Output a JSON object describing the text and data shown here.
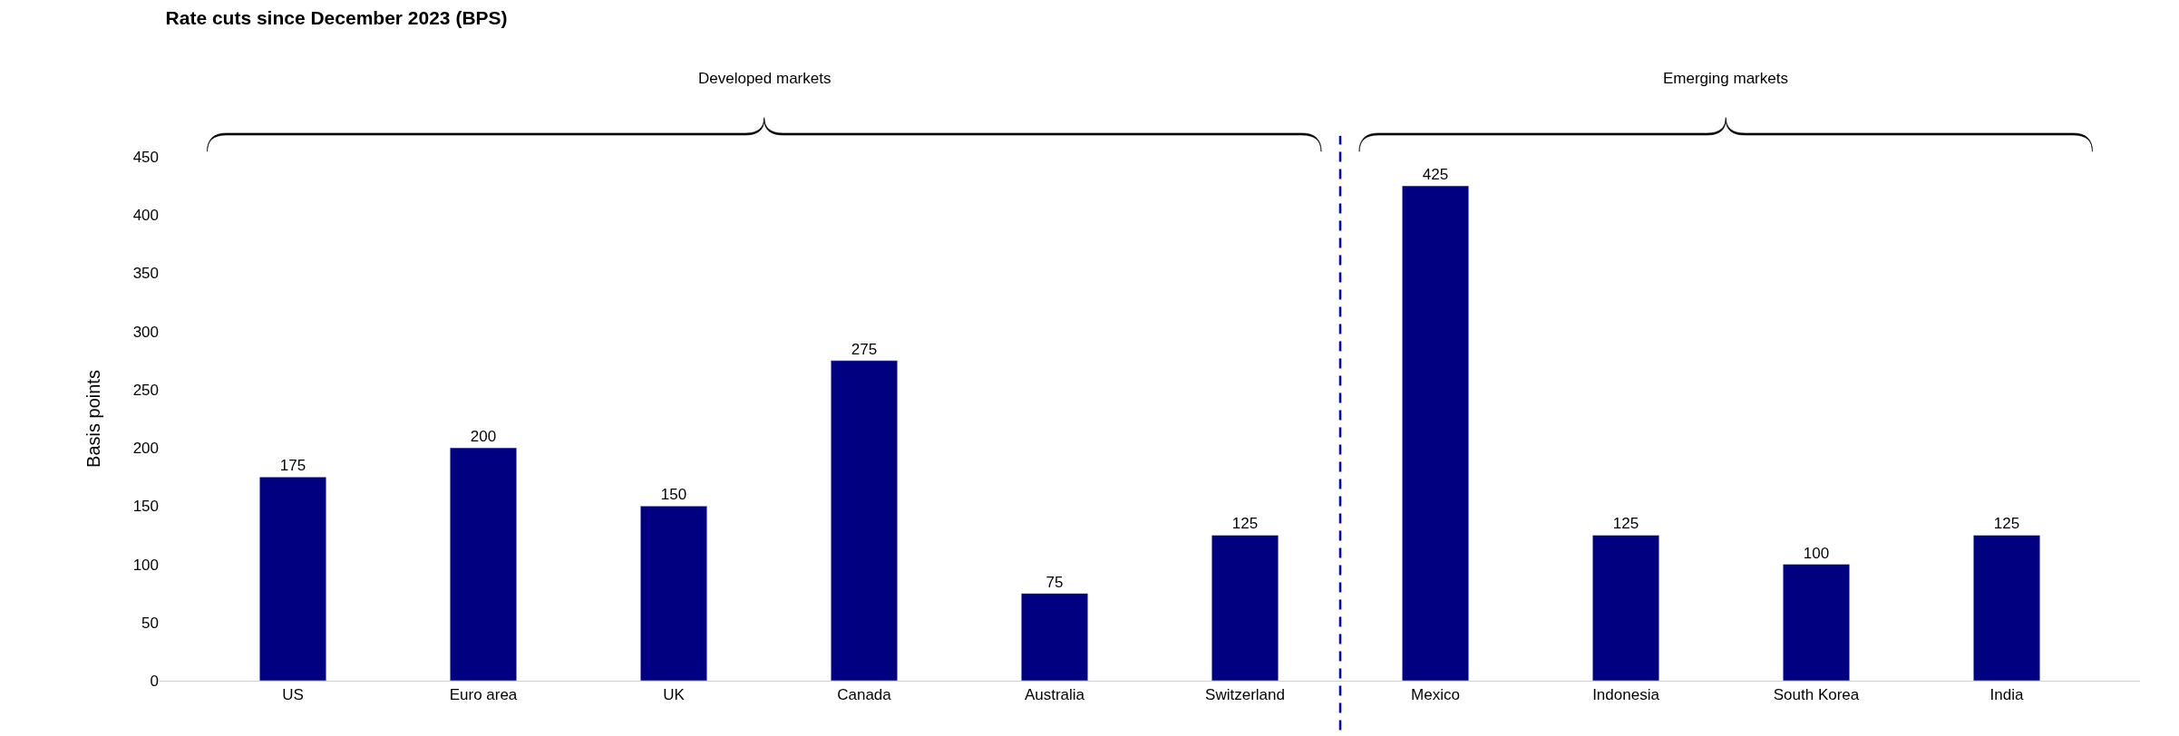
{
  "chart_data": {
    "type": "bar",
    "title": "Rate cuts since December 2023 (BPS)",
    "ylabel": "Basis points",
    "categories": [
      "US",
      "Euro area",
      "UK",
      "Canada",
      "Australia",
      "Switzerland",
      "Mexico",
      "Indonesia",
      "South Korea",
      "India"
    ],
    "values": [
      175,
      200,
      150,
      275,
      75,
      125,
      425,
      125,
      100,
      125
    ],
    "color": "#000080",
    "ylim": [
      0,
      450
    ],
    "yticks": [
      0,
      50,
      100,
      150,
      200,
      250,
      300,
      350,
      400,
      450
    ],
    "data_labels": true,
    "annotations": [
      "Developed markets",
      "Emerging markets"
    ]
  }
}
